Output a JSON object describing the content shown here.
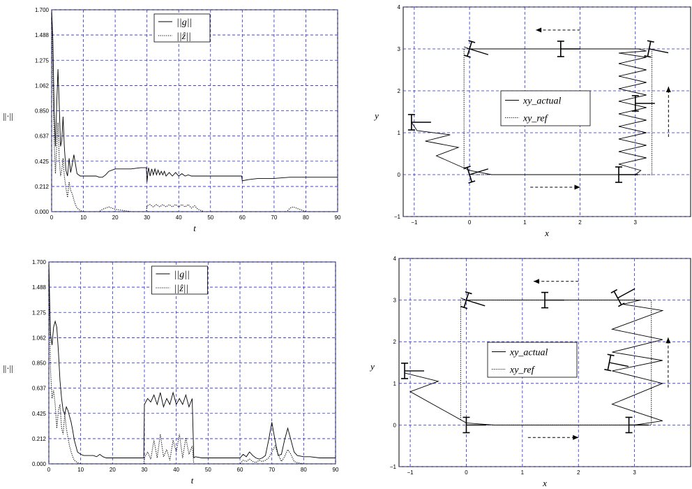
{
  "chart_data": [
    {
      "type": "line",
      "xlabel": "t",
      "ylabel": "||·||",
      "xlim": [
        0,
        90
      ],
      "ylim": [
        0,
        1.7
      ],
      "xticks": [
        "0",
        "10",
        "20",
        "30",
        "40",
        "50",
        "60",
        "70",
        "80",
        "90"
      ],
      "yticks": [
        "0.000",
        "0.212",
        "0.425",
        "0.637",
        "0.850",
        "1.062",
        "1.275",
        "1.488",
        "1.700"
      ],
      "grid": true,
      "legend_position": "top-center",
      "legend": [
        {
          "label": "||g||",
          "style": "solid"
        },
        {
          "label": "||ẑ||",
          "style": "dotted"
        }
      ],
      "series": [
        {
          "name": "||g||",
          "style": "solid",
          "x": [
            0,
            0.4,
            0.8,
            1.2,
            1.6,
            2,
            2.4,
            2.8,
            3.2,
            3.6,
            4,
            4.5,
            5,
            5.5,
            6,
            6.5,
            7,
            7.5,
            8,
            9,
            10,
            12,
            14,
            15,
            16,
            17,
            18,
            20,
            22,
            25,
            28,
            29.8,
            30,
            30.5,
            31,
            31.5,
            32,
            32.5,
            33,
            33.5,
            34,
            34.5,
            35,
            35.5,
            36,
            37,
            38,
            39,
            40,
            41,
            42,
            43,
            44,
            45,
            46,
            48,
            50,
            55,
            59.8,
            60,
            62,
            65,
            70,
            75,
            80,
            85,
            90
          ],
          "y": [
            1.7,
            1.45,
            0.85,
            0.55,
            0.9,
            1.2,
            0.9,
            0.55,
            0.6,
            0.8,
            0.55,
            0.35,
            0.3,
            0.45,
            0.33,
            0.4,
            0.48,
            0.4,
            0.32,
            0.3,
            0.3,
            0.3,
            0.3,
            0.29,
            0.29,
            0.31,
            0.34,
            0.36,
            0.36,
            0.36,
            0.37,
            0.37,
            0.25,
            0.37,
            0.3,
            0.36,
            0.31,
            0.36,
            0.31,
            0.35,
            0.31,
            0.34,
            0.31,
            0.34,
            0.3,
            0.33,
            0.3,
            0.33,
            0.3,
            0.32,
            0.3,
            0.31,
            0.3,
            0.3,
            0.3,
            0.3,
            0.3,
            0.3,
            0.3,
            0.26,
            0.27,
            0.28,
            0.28,
            0.29,
            0.29,
            0.29,
            0.29
          ]
        },
        {
          "name": "||ẑ||",
          "style": "dotted",
          "x": [
            0,
            0.4,
            0.8,
            1.2,
            1.6,
            2,
            2.4,
            2.8,
            3.2,
            3.6,
            4,
            4.5,
            5,
            5.5,
            6,
            6.5,
            7,
            7.5,
            8,
            9,
            10,
            12,
            15,
            16,
            17,
            18,
            19,
            20,
            25,
            29.8,
            30,
            31,
            32,
            33,
            34,
            35,
            36,
            37,
            38,
            39,
            40,
            41,
            42,
            43,
            44,
            45,
            46,
            48,
            50,
            55,
            60,
            70,
            74,
            75,
            76,
            77,
            80,
            85,
            90
          ],
          "y": [
            1.7,
            1.1,
            0.6,
            0.32,
            0.55,
            0.75,
            0.45,
            0.3,
            0.35,
            0.45,
            0.3,
            0.2,
            0.12,
            0.25,
            0.18,
            0.15,
            0.1,
            0.06,
            0.03,
            0.01,
            0,
            0,
            0,
            0.02,
            0.03,
            0.04,
            0.03,
            0.02,
            0,
            0,
            0.05,
            0.06,
            0.04,
            0.06,
            0.04,
            0.06,
            0.04,
            0.06,
            0.04,
            0.06,
            0.04,
            0.06,
            0.04,
            0.06,
            0.03,
            0.05,
            0.02,
            0,
            0,
            0,
            0,
            0,
            0,
            0.03,
            0.04,
            0.03,
            0,
            0,
            0
          ]
        }
      ]
    },
    {
      "type": "line",
      "xlabel": "x",
      "ylabel": "y",
      "xlim": [
        -1.2,
        4
      ],
      "ylim": [
        -1,
        4
      ],
      "xticks": [
        "−1",
        "0",
        "1",
        "2",
        "3"
      ],
      "yticks": [
        "−1",
        "0",
        "1",
        "2",
        "3",
        "4"
      ],
      "grid": true,
      "legend_position": "center",
      "legend": [
        {
          "label": "xy_actual",
          "style": "solid"
        },
        {
          "label": "xy_ref",
          "style": "dotted"
        }
      ],
      "series": [
        {
          "name": "xy_actual",
          "style": "solid",
          "x": [
            -1.05,
            -0.95,
            -0.35,
            -0.8,
            -0.2,
            -0.6,
            0,
            0.4,
            2,
            3,
            3.1,
            2.7,
            3.2,
            2.7,
            3.2,
            2.7,
            3.2,
            2.7,
            3.2,
            2.7,
            3.2,
            2.7,
            3.2,
            2.7,
            3.2,
            2.7,
            3.2,
            2.7,
            3.2,
            2.7,
            3.2,
            3.05,
            2,
            1,
            0,
            -0.1
          ],
          "y": [
            1.25,
            1.05,
            0.95,
            0.8,
            0.65,
            0.45,
            0.1,
            0,
            0,
            0,
            0.1,
            0.25,
            0.4,
            0.55,
            0.7,
            0.85,
            1,
            1.15,
            1.3,
            1.45,
            1.6,
            1.75,
            1.9,
            2.05,
            2.2,
            2.35,
            2.5,
            2.65,
            2.8,
            2.9,
            2.95,
            3,
            3,
            3,
            3,
            3.05
          ]
        },
        {
          "name": "xy_ref",
          "style": "dotted",
          "x": [
            0,
            3.3,
            3.3,
            -0.1,
            -0.1
          ],
          "y": [
            0,
            0,
            3,
            3,
            0.1
          ]
        }
      ]
    },
    {
      "type": "line",
      "xlabel": "t",
      "ylabel": "||·||",
      "xlim": [
        0,
        90
      ],
      "ylim": [
        0,
        1.7
      ],
      "xticks": [
        "0",
        "10",
        "20",
        "30",
        "40",
        "50",
        "60",
        "70",
        "80",
        "90"
      ],
      "yticks": [
        "0.000",
        "0.212",
        "0.425",
        "0.637",
        "0.850",
        "1.062",
        "1.275",
        "1.488",
        "1.700"
      ],
      "grid": true,
      "legend_position": "top-center",
      "legend": [
        {
          "label": "||g||",
          "style": "solid"
        },
        {
          "label": "||ẑ||",
          "style": "dotted"
        }
      ],
      "series": [
        {
          "name": "||g||",
          "style": "solid",
          "x": [
            0,
            0.5,
            1,
            1.5,
            2,
            2.5,
            3,
            3.5,
            4,
            4.5,
            5,
            5.5,
            6,
            6.5,
            7,
            7.5,
            8,
            9,
            10,
            11,
            12,
            14,
            15,
            16,
            17,
            18,
            20,
            25,
            29.8,
            30,
            31,
            32,
            33,
            34,
            35,
            36,
            37,
            38,
            39,
            40,
            41,
            42,
            43,
            44,
            45,
            45.5,
            46,
            48,
            50,
            55,
            60,
            61,
            62,
            63,
            64,
            65,
            66,
            67,
            68,
            69,
            70,
            71,
            72,
            73,
            74,
            75,
            76,
            77,
            78,
            80,
            82,
            85,
            88,
            90
          ],
          "y": [
            1.7,
            1.1,
            1.0,
            1.15,
            1.2,
            1.15,
            0.95,
            0.7,
            0.55,
            0.45,
            0.42,
            0.48,
            0.45,
            0.4,
            0.35,
            0.28,
            0.2,
            0.1,
            0.08,
            0.07,
            0.07,
            0.07,
            0.06,
            0.08,
            0.06,
            0.05,
            0.05,
            0.05,
            0.05,
            0.5,
            0.55,
            0.52,
            0.58,
            0.5,
            0.6,
            0.48,
            0.55,
            0.5,
            0.6,
            0.5,
            0.55,
            0.5,
            0.58,
            0.48,
            0.55,
            0.05,
            0.06,
            0.05,
            0.05,
            0.05,
            0.05,
            0.08,
            0.06,
            0.1,
            0.07,
            0.05,
            0.04,
            0.05,
            0.07,
            0.2,
            0.35,
            0.2,
            0.07,
            0.08,
            0.2,
            0.3,
            0.2,
            0.1,
            0.07,
            0.06,
            0.06,
            0.05,
            0.05,
            0.05
          ]
        },
        {
          "name": "||ẑ||",
          "style": "dotted",
          "x": [
            0,
            0.5,
            1,
            1.5,
            2,
            2.5,
            3,
            3.5,
            4,
            4.5,
            5,
            5.5,
            6,
            6.5,
            7,
            7.5,
            8,
            9,
            10,
            12,
            15,
            20,
            25,
            29.8,
            30,
            31,
            32,
            33,
            34,
            35,
            36,
            37,
            38,
            39,
            40,
            41,
            42,
            43,
            44,
            45,
            45.5,
            46,
            48,
            50,
            55,
            60,
            61,
            62,
            63,
            64,
            65,
            66,
            67,
            68,
            69,
            70,
            71,
            72,
            73,
            74,
            75,
            76,
            77,
            78,
            80,
            85,
            90
          ],
          "y": [
            1.65,
            0.8,
            0.55,
            0.62,
            0.5,
            0.3,
            0.45,
            0.5,
            0.3,
            0.25,
            0.42,
            0.3,
            0.22,
            0.15,
            0.1,
            0.06,
            0.03,
            0.01,
            0,
            0,
            0,
            0,
            0,
            0,
            0.05,
            0.1,
            0.04,
            0.2,
            0.05,
            0.25,
            0.06,
            0.12,
            0.03,
            0.2,
            0.1,
            0.25,
            0.05,
            0.22,
            0.08,
            0.15,
            0,
            0,
            0,
            0,
            0,
            0,
            0.03,
            0.02,
            0.04,
            0.02,
            0.01,
            0.03,
            0.02,
            0.03,
            0.05,
            0.1,
            0.15,
            0.08,
            0.02,
            0.06,
            0.12,
            0.08,
            0.02,
            0.01,
            0,
            0,
            0
          ]
        }
      ]
    },
    {
      "type": "line",
      "xlabel": "x",
      "ylabel": "y",
      "xlim": [
        -1.2,
        4
      ],
      "ylim": [
        -1,
        4
      ],
      "xticks": [
        "−1",
        "0",
        "1",
        "2",
        "3"
      ],
      "yticks": [
        "−1",
        "0",
        "1",
        "2",
        "3",
        "4"
      ],
      "grid": true,
      "legend_position": "center",
      "legend": [
        {
          "label": "xy_actual",
          "style": "solid"
        },
        {
          "label": "xy_ref",
          "style": "dotted"
        }
      ],
      "series": [
        {
          "name": "xy_actual",
          "style": "solid",
          "x": [
            -1.1,
            -0.5,
            -1.0,
            0,
            0.5,
            2,
            3,
            3.5,
            2.6,
            3.5,
            2.6,
            3.5,
            2.6,
            3.5,
            2.6,
            3.5,
            2.8,
            3.1,
            2,
            1,
            0,
            -0.1
          ],
          "y": [
            1.25,
            1.05,
            0.8,
            0.05,
            0,
            0,
            0,
            0.1,
            0.5,
            1.0,
            1.3,
            1.55,
            1.75,
            2.05,
            2.3,
            2.75,
            2.9,
            3,
            3,
            3,
            3,
            3.05
          ]
        },
        {
          "name": "xy_ref",
          "style": "dotted",
          "x": [
            0,
            3.3,
            3.3,
            -0.1,
            -0.1
          ],
          "y": [
            0,
            0,
            3,
            3,
            0.1
          ]
        }
      ]
    }
  ]
}
